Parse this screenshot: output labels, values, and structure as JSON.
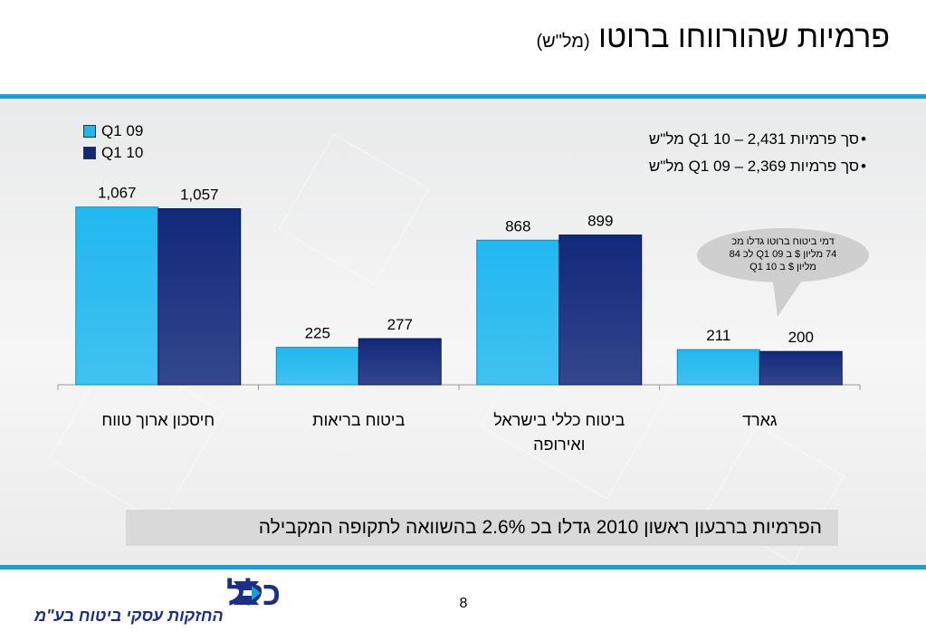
{
  "header": {
    "title": "פרמיות שהורווחו ברוטו",
    "unit": "(מל\"ש)"
  },
  "colors": {
    "band": "#1a9fd9",
    "q1_09": "#21b8f0",
    "q1_10": "#12287a",
    "logo": "#1b2f87"
  },
  "legend": [
    {
      "label": "Q1 09",
      "color": "#21b8f0"
    },
    {
      "label": "Q1 10",
      "color": "#12287a"
    }
  ],
  "summary": [
    {
      "bullet": "•",
      "text": "סך פרמיות Q1 10 – 2,431 מל\"ש"
    },
    {
      "bullet": "•",
      "text": "סך פרמיות Q1 09 – 2,369 מל\"ש"
    }
  ],
  "callout": {
    "lines": [
      "דמי ביטוח ברוטו גדלו מכ",
      "74 מליון $ ב Q1 09 לכ 84",
      "מליון $ ב Q1 10"
    ]
  },
  "chart_data": {
    "type": "bar",
    "categories": [
      "חיסכון ארוך טווח",
      "ביטוח בריאות",
      "ביטוח כללי בישראל ואירופה",
      "גארד"
    ],
    "category_lines": [
      [
        "חיסכון ארוך טווח"
      ],
      [
        "ביטוח בריאות"
      ],
      [
        "ביטוח כללי בישראל",
        "ואירופה"
      ],
      [
        "גארד"
      ]
    ],
    "series": [
      {
        "name": "Q1 09",
        "values": [
          1067,
          225,
          868,
          211
        ],
        "labels": [
          "1,067",
          "225",
          "868",
          "211"
        ]
      },
      {
        "name": "Q1 10",
        "values": [
          1057,
          277,
          899,
          200
        ],
        "labels": [
          "1,057",
          "277",
          "899",
          "200"
        ]
      }
    ],
    "ylim": [
      0,
      1200
    ],
    "legend_position": "top-left",
    "grid": false,
    "xlabel": "",
    "ylabel": ""
  },
  "headline": "הפרמיות ברבעון ראשון 2010 גדלו בכ 2.6% בהשוואה לתקופה המקבילה",
  "footer": {
    "page_number": "8",
    "logo_text": "כלל",
    "logo_tagline": "החזקות עסקי ביטוח בע\"מ"
  }
}
